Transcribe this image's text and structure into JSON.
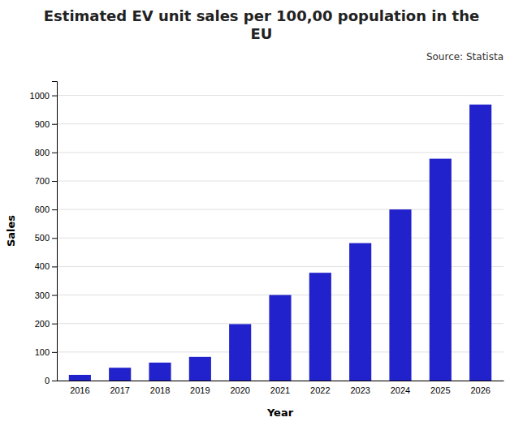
{
  "chart_data": {
    "type": "bar",
    "title": "Estimated EV unit sales per 100,00 population in the\nEU",
    "source": "Source: Statista",
    "xlabel": "Year",
    "ylabel": "Sales",
    "categories": [
      "2016",
      "2017",
      "2018",
      "2019",
      "2020",
      "2021",
      "2022",
      "2023",
      "2024",
      "2025",
      "2026"
    ],
    "values": [
      20,
      45,
      63,
      83,
      198,
      300,
      378,
      482,
      600,
      778,
      968
    ],
    "color": "#2222cc",
    "ylim": [
      0,
      1050
    ],
    "yticks": [
      0,
      100,
      200,
      300,
      400,
      500,
      600,
      700,
      800,
      900,
      1000
    ],
    "grid": true
  }
}
